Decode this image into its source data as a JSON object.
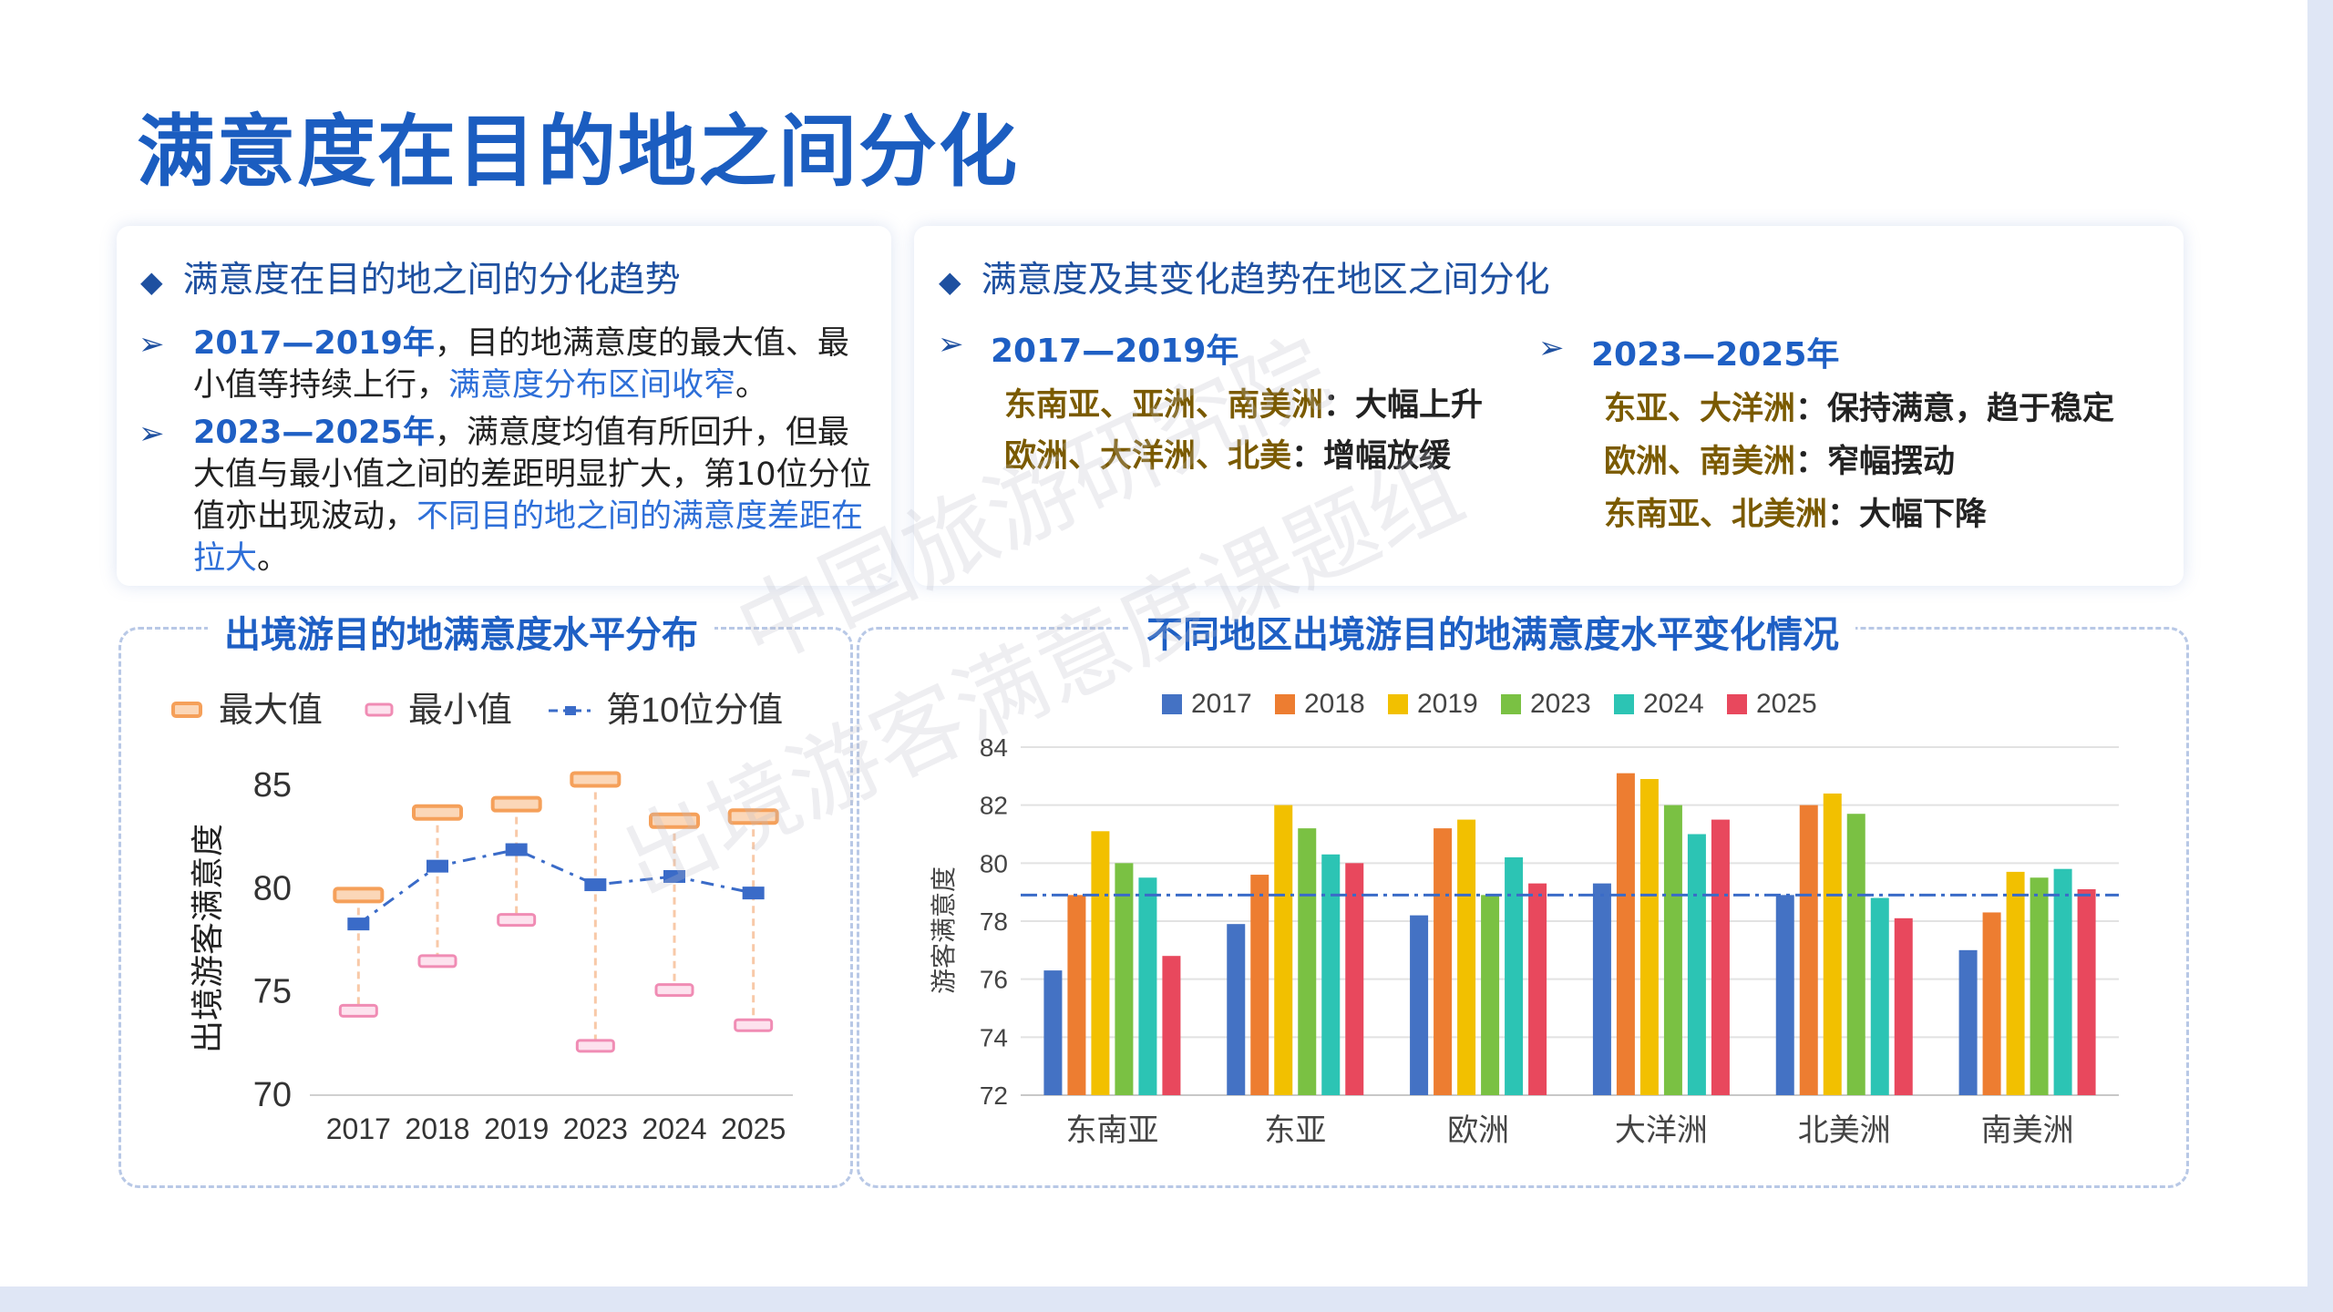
{
  "title": "满意度在目的地之间分化",
  "left_panel": {
    "heading": "满意度在目的地之间的分化趋势",
    "p1_year": "2017—2019年",
    "p1_a": "，目的地满意度的最大值、最小值等持续上行，",
    "p1_hl": "满意度分布区间收窄",
    "p1_end": "。",
    "p2_year": "2023—2025年",
    "p2_a": "，满意度均值有所回升，但最大值与最小值之间的差距明显扩大，第10位分位值亦出现波动，",
    "p2_hl": "不同目的地之间的满意度差距在拉大",
    "p2_end": "。"
  },
  "right_panel": {
    "heading": "满意度及其变化趋势在地区之间分化",
    "col1_year": "2017—2019年",
    "col1_r1": "东南亚、亚洲、南美洲",
    "col1_t1": "：大幅上升",
    "col1_r2": "欧洲、大洋洲、北美",
    "col1_t2": "：增幅放缓",
    "col2_year": "2023—2025年",
    "col2_r1": "东亚、大洋洲",
    "col2_t1": "：保持满意，趋于稳定",
    "col2_r2": "欧洲、南美洲",
    "col2_t2": "：窄幅摆动",
    "col2_r3": "东南亚、北美洲",
    "col2_t3": "：大幅下降"
  },
  "watermark": {
    "line1": "中国旅游研究院",
    "line2": "出境游客满意度课题组"
  },
  "colors": {
    "title": "#1b5dc0",
    "max": "#f5a05a",
    "min": "#f08cb4",
    "p10": "#3a6bc8"
  },
  "chart_data": [
    {
      "type": "range",
      "title": "出境游目的地满意度水平分布",
      "ylabel": "出境游客满意度",
      "xlabel": "",
      "categories": [
        "2017",
        "2018",
        "2019",
        "2023",
        "2024",
        "2025"
      ],
      "ylim": [
        70,
        85
      ],
      "yticks": [
        70,
        75,
        80,
        85
      ],
      "grid": false,
      "legend_position": "top",
      "series": [
        {
          "name": "最大值",
          "values": [
            79.6,
            83.6,
            84.0,
            85.2,
            83.2,
            83.4
          ]
        },
        {
          "name": "最小值",
          "values": [
            74.0,
            76.4,
            78.4,
            72.3,
            75.0,
            73.3
          ]
        },
        {
          "name": "第10位分值",
          "values": [
            78.2,
            81.0,
            81.8,
            80.1,
            80.5,
            79.7
          ]
        }
      ]
    },
    {
      "type": "bar",
      "title": "不同地区出境游目的地满意度水平变化情况",
      "ylabel": "游客满意度",
      "xlabel": "",
      "categories": [
        "东南亚",
        "东亚",
        "欧洲",
        "大洋洲",
        "北美洲",
        "南美洲"
      ],
      "ylim": [
        72,
        84
      ],
      "yticks": [
        72,
        74,
        76,
        78,
        80,
        82,
        84
      ],
      "grid": true,
      "legend_position": "top",
      "reference_line": 78.9,
      "series": [
        {
          "name": "2017",
          "color": "#4472c4",
          "values": [
            76.3,
            77.9,
            78.2,
            79.3,
            78.9,
            77.0
          ]
        },
        {
          "name": "2018",
          "color": "#ed7d31",
          "values": [
            78.9,
            79.6,
            81.2,
            83.1,
            82.0,
            78.3
          ]
        },
        {
          "name": "2019",
          "color": "#f2c000",
          "values": [
            81.1,
            82.0,
            81.5,
            82.9,
            82.4,
            79.7
          ]
        },
        {
          "name": "2023",
          "color": "#7ac143",
          "values": [
            80.0,
            81.2,
            78.9,
            82.0,
            81.7,
            79.5
          ]
        },
        {
          "name": "2024",
          "color": "#2cc4b4",
          "values": [
            79.5,
            80.3,
            80.2,
            81.0,
            78.8,
            79.8
          ]
        },
        {
          "name": "2025",
          "color": "#e8485d",
          "values": [
            76.8,
            80.0,
            79.3,
            81.5,
            78.1,
            79.1
          ]
        }
      ]
    }
  ]
}
